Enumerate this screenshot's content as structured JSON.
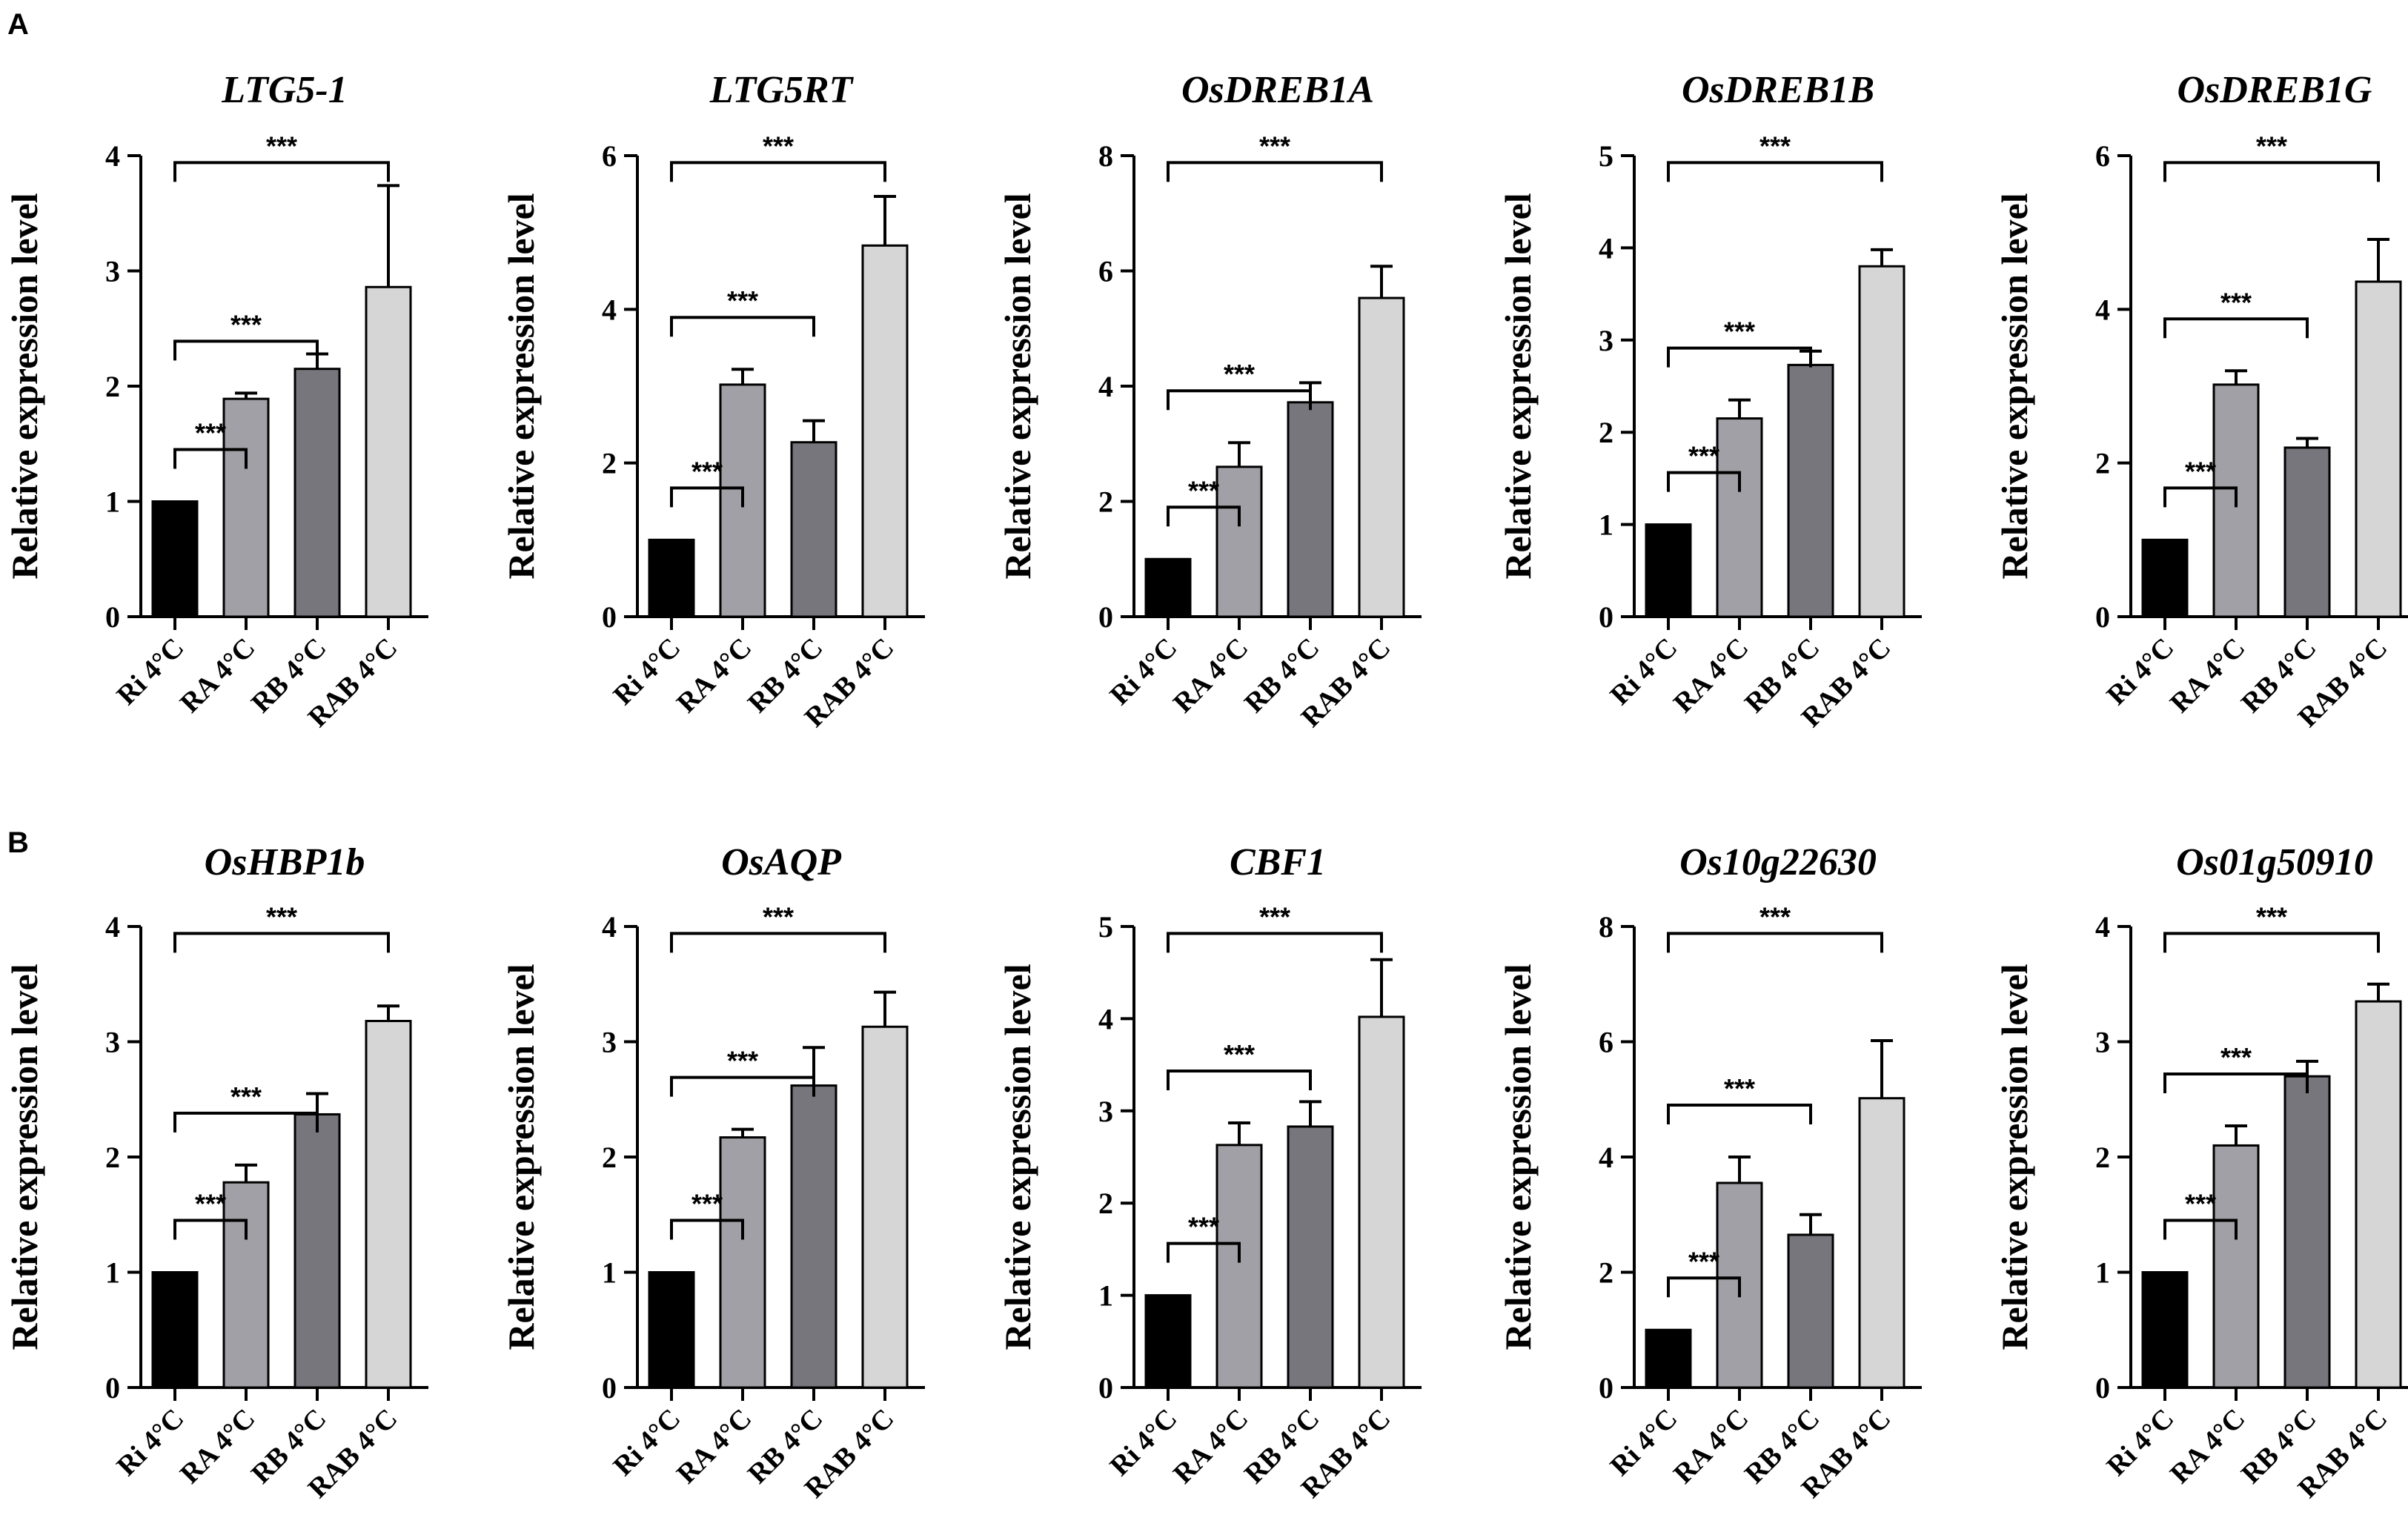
{
  "panels": [
    {
      "label": "A"
    },
    {
      "label": "B"
    }
  ],
  "chart_data": [
    {
      "type": "bar",
      "panel": "A",
      "title": "LTG5-1",
      "ylabel": "Relative expression level",
      "categories": [
        "Ri 4°C",
        "RA 4°C",
        "RB 4°C",
        "RAB 4°C"
      ],
      "values": [
        1.0,
        1.89,
        2.15,
        2.86
      ],
      "errors": [
        0,
        0.05,
        0.13,
        0.88
      ],
      "ylim": [
        0,
        4
      ],
      "yticks": [
        "0",
        "1",
        "2",
        "3",
        "4"
      ],
      "bar_colors": [
        "#000000",
        "#a0a0a6",
        "#76767c",
        "#d6d6d6"
      ],
      "significance": [
        {
          "from": 0,
          "to": 1,
          "label": "***"
        },
        {
          "from": 0,
          "to": 2,
          "label": "***"
        },
        {
          "from": 0,
          "to": 3,
          "label": "***"
        }
      ]
    },
    {
      "type": "bar",
      "panel": "A",
      "title": "LTG5RT",
      "ylabel": "Relative expression level",
      "categories": [
        "Ri 4°C",
        "RA 4°C",
        "RB 4°C",
        "RAB 4°C"
      ],
      "values": [
        1.0,
        3.02,
        2.27,
        4.83
      ],
      "errors": [
        0,
        0.2,
        0.28,
        0.64
      ],
      "ylim": [
        0,
        6
      ],
      "yticks": [
        "0",
        "2",
        "4",
        "6"
      ],
      "bar_colors": [
        "#000000",
        "#a0a0a6",
        "#76767c",
        "#d6d6d6"
      ],
      "significance": [
        {
          "from": 0,
          "to": 1,
          "label": "***"
        },
        {
          "from": 0,
          "to": 2,
          "label": "***"
        },
        {
          "from": 0,
          "to": 3,
          "label": "***"
        }
      ]
    },
    {
      "type": "bar",
      "panel": "A",
      "title": "OsDREB1A",
      "ylabel": "Relative expression level",
      "categories": [
        "Ri 4°C",
        "RA 4°C",
        "RB 4°C",
        "RAB 4°C"
      ],
      "values": [
        1.0,
        2.6,
        3.72,
        5.53
      ],
      "errors": [
        0,
        0.42,
        0.34,
        0.55
      ],
      "ylim": [
        0,
        8
      ],
      "yticks": [
        "0",
        "2",
        "4",
        "6",
        "8"
      ],
      "bar_colors": [
        "#000000",
        "#a0a0a6",
        "#76767c",
        "#d6d6d6"
      ],
      "significance": [
        {
          "from": 0,
          "to": 1,
          "label": "***"
        },
        {
          "from": 0,
          "to": 2,
          "label": "***"
        },
        {
          "from": 0,
          "to": 3,
          "label": "***"
        }
      ]
    },
    {
      "type": "bar",
      "panel": "A",
      "title": "OsDREB1B",
      "ylabel": "Relative expression level",
      "categories": [
        "Ri 4°C",
        "RA 4°C",
        "RB 4°C",
        "RAB 4°C"
      ],
      "values": [
        1.0,
        2.15,
        2.73,
        3.8
      ],
      "errors": [
        0,
        0.2,
        0.15,
        0.18
      ],
      "ylim": [
        0,
        5
      ],
      "yticks": [
        "0",
        "1",
        "2",
        "3",
        "4",
        "5"
      ],
      "bar_colors": [
        "#000000",
        "#a0a0a6",
        "#76767c",
        "#d6d6d6"
      ],
      "significance": [
        {
          "from": 0,
          "to": 1,
          "label": "***"
        },
        {
          "from": 0,
          "to": 2,
          "label": "***"
        },
        {
          "from": 0,
          "to": 3,
          "label": "***"
        }
      ]
    },
    {
      "type": "bar",
      "panel": "A",
      "title": "OsDREB1G",
      "ylabel": "Relative expression level",
      "categories": [
        "Ri 4°C",
        "RA 4°C",
        "RB 4°C",
        "RAB 4°C"
      ],
      "values": [
        1.0,
        3.02,
        2.2,
        4.36
      ],
      "errors": [
        0,
        0.18,
        0.12,
        0.55
      ],
      "ylim": [
        0,
        6
      ],
      "yticks": [
        "0",
        "2",
        "4",
        "6"
      ],
      "bar_colors": [
        "#000000",
        "#a0a0a6",
        "#76767c",
        "#d6d6d6"
      ],
      "significance": [
        {
          "from": 0,
          "to": 1,
          "label": "***"
        },
        {
          "from": 0,
          "to": 2,
          "label": "***"
        },
        {
          "from": 0,
          "to": 3,
          "label": "***"
        }
      ]
    },
    {
      "type": "bar",
      "panel": "B",
      "title": "OsHBP1b",
      "ylabel": "Relative expression level",
      "categories": [
        "Ri 4°C",
        "RA 4°C",
        "RB 4°C",
        "RAB 4°C"
      ],
      "values": [
        1.0,
        1.78,
        2.37,
        3.18
      ],
      "errors": [
        0,
        0.15,
        0.18,
        0.13
      ],
      "ylim": [
        0,
        4
      ],
      "yticks": [
        "0",
        "1",
        "2",
        "3",
        "4"
      ],
      "bar_colors": [
        "#000000",
        "#a0a0a6",
        "#76767c",
        "#d6d6d6"
      ],
      "significance": [
        {
          "from": 0,
          "to": 1,
          "label": "***"
        },
        {
          "from": 0,
          "to": 2,
          "label": "***"
        },
        {
          "from": 0,
          "to": 3,
          "label": "***"
        }
      ]
    },
    {
      "type": "bar",
      "panel": "B",
      "title": "OsAQP",
      "ylabel": "Relative expression level",
      "categories": [
        "Ri 4°C",
        "RA 4°C",
        "RB 4°C",
        "RAB 4°C"
      ],
      "values": [
        1.0,
        2.17,
        2.62,
        3.13
      ],
      "errors": [
        0,
        0.07,
        0.33,
        0.3
      ],
      "ylim": [
        0,
        4
      ],
      "yticks": [
        "0",
        "1",
        "2",
        "3",
        "4"
      ],
      "bar_colors": [
        "#000000",
        "#a0a0a6",
        "#76767c",
        "#d6d6d6"
      ],
      "significance": [
        {
          "from": 0,
          "to": 1,
          "label": "***"
        },
        {
          "from": 0,
          "to": 2,
          "label": "***"
        },
        {
          "from": 0,
          "to": 3,
          "label": "***"
        }
      ]
    },
    {
      "type": "bar",
      "panel": "B",
      "title": "CBF1",
      "ylabel": "Relative expression level",
      "categories": [
        "Ri 4°C",
        "RA 4°C",
        "RB 4°C",
        "RAB 4°C"
      ],
      "values": [
        1.0,
        2.63,
        2.83,
        4.02
      ],
      "errors": [
        0,
        0.24,
        0.27,
        0.62
      ],
      "ylim": [
        0,
        5
      ],
      "yticks": [
        "0",
        "1",
        "2",
        "3",
        "4",
        "5"
      ],
      "bar_colors": [
        "#000000",
        "#a0a0a6",
        "#76767c",
        "#d6d6d6"
      ],
      "significance": [
        {
          "from": 0,
          "to": 1,
          "label": "***"
        },
        {
          "from": 0,
          "to": 2,
          "label": "***"
        },
        {
          "from": 0,
          "to": 3,
          "label": "***"
        }
      ]
    },
    {
      "type": "bar",
      "panel": "B",
      "title": "Os10g22630",
      "ylabel": "Relative expression level",
      "categories": [
        "Ri 4°C",
        "RA 4°C",
        "RB 4°C",
        "RAB 4°C"
      ],
      "values": [
        1.0,
        3.55,
        2.65,
        5.02
      ],
      "errors": [
        0,
        0.45,
        0.35,
        1.0
      ],
      "ylim": [
        0,
        8
      ],
      "yticks": [
        "0",
        "2",
        "4",
        "6",
        "8"
      ],
      "bar_colors": [
        "#000000",
        "#a0a0a6",
        "#76767c",
        "#d6d6d6"
      ],
      "significance": [
        {
          "from": 0,
          "to": 1,
          "label": "***"
        },
        {
          "from": 0,
          "to": 2,
          "label": "***"
        },
        {
          "from": 0,
          "to": 3,
          "label": "***"
        }
      ]
    },
    {
      "type": "bar",
      "panel": "B",
      "title": "Os01g50910",
      "ylabel": "Relative expression level",
      "categories": [
        "Ri 4°C",
        "RA 4°C",
        "RB 4°C",
        "RAB 4°C"
      ],
      "values": [
        1.0,
        2.1,
        2.7,
        3.35
      ],
      "errors": [
        0,
        0.17,
        0.13,
        0.15
      ],
      "ylim": [
        0,
        4
      ],
      "yticks": [
        "0",
        "1",
        "2",
        "3",
        "4"
      ],
      "bar_colors": [
        "#000000",
        "#a0a0a6",
        "#76767c",
        "#d6d6d6"
      ],
      "significance": [
        {
          "from": 0,
          "to": 1,
          "label": "***"
        },
        {
          "from": 0,
          "to": 2,
          "label": "***"
        },
        {
          "from": 0,
          "to": 3,
          "label": "***"
        }
      ]
    }
  ]
}
